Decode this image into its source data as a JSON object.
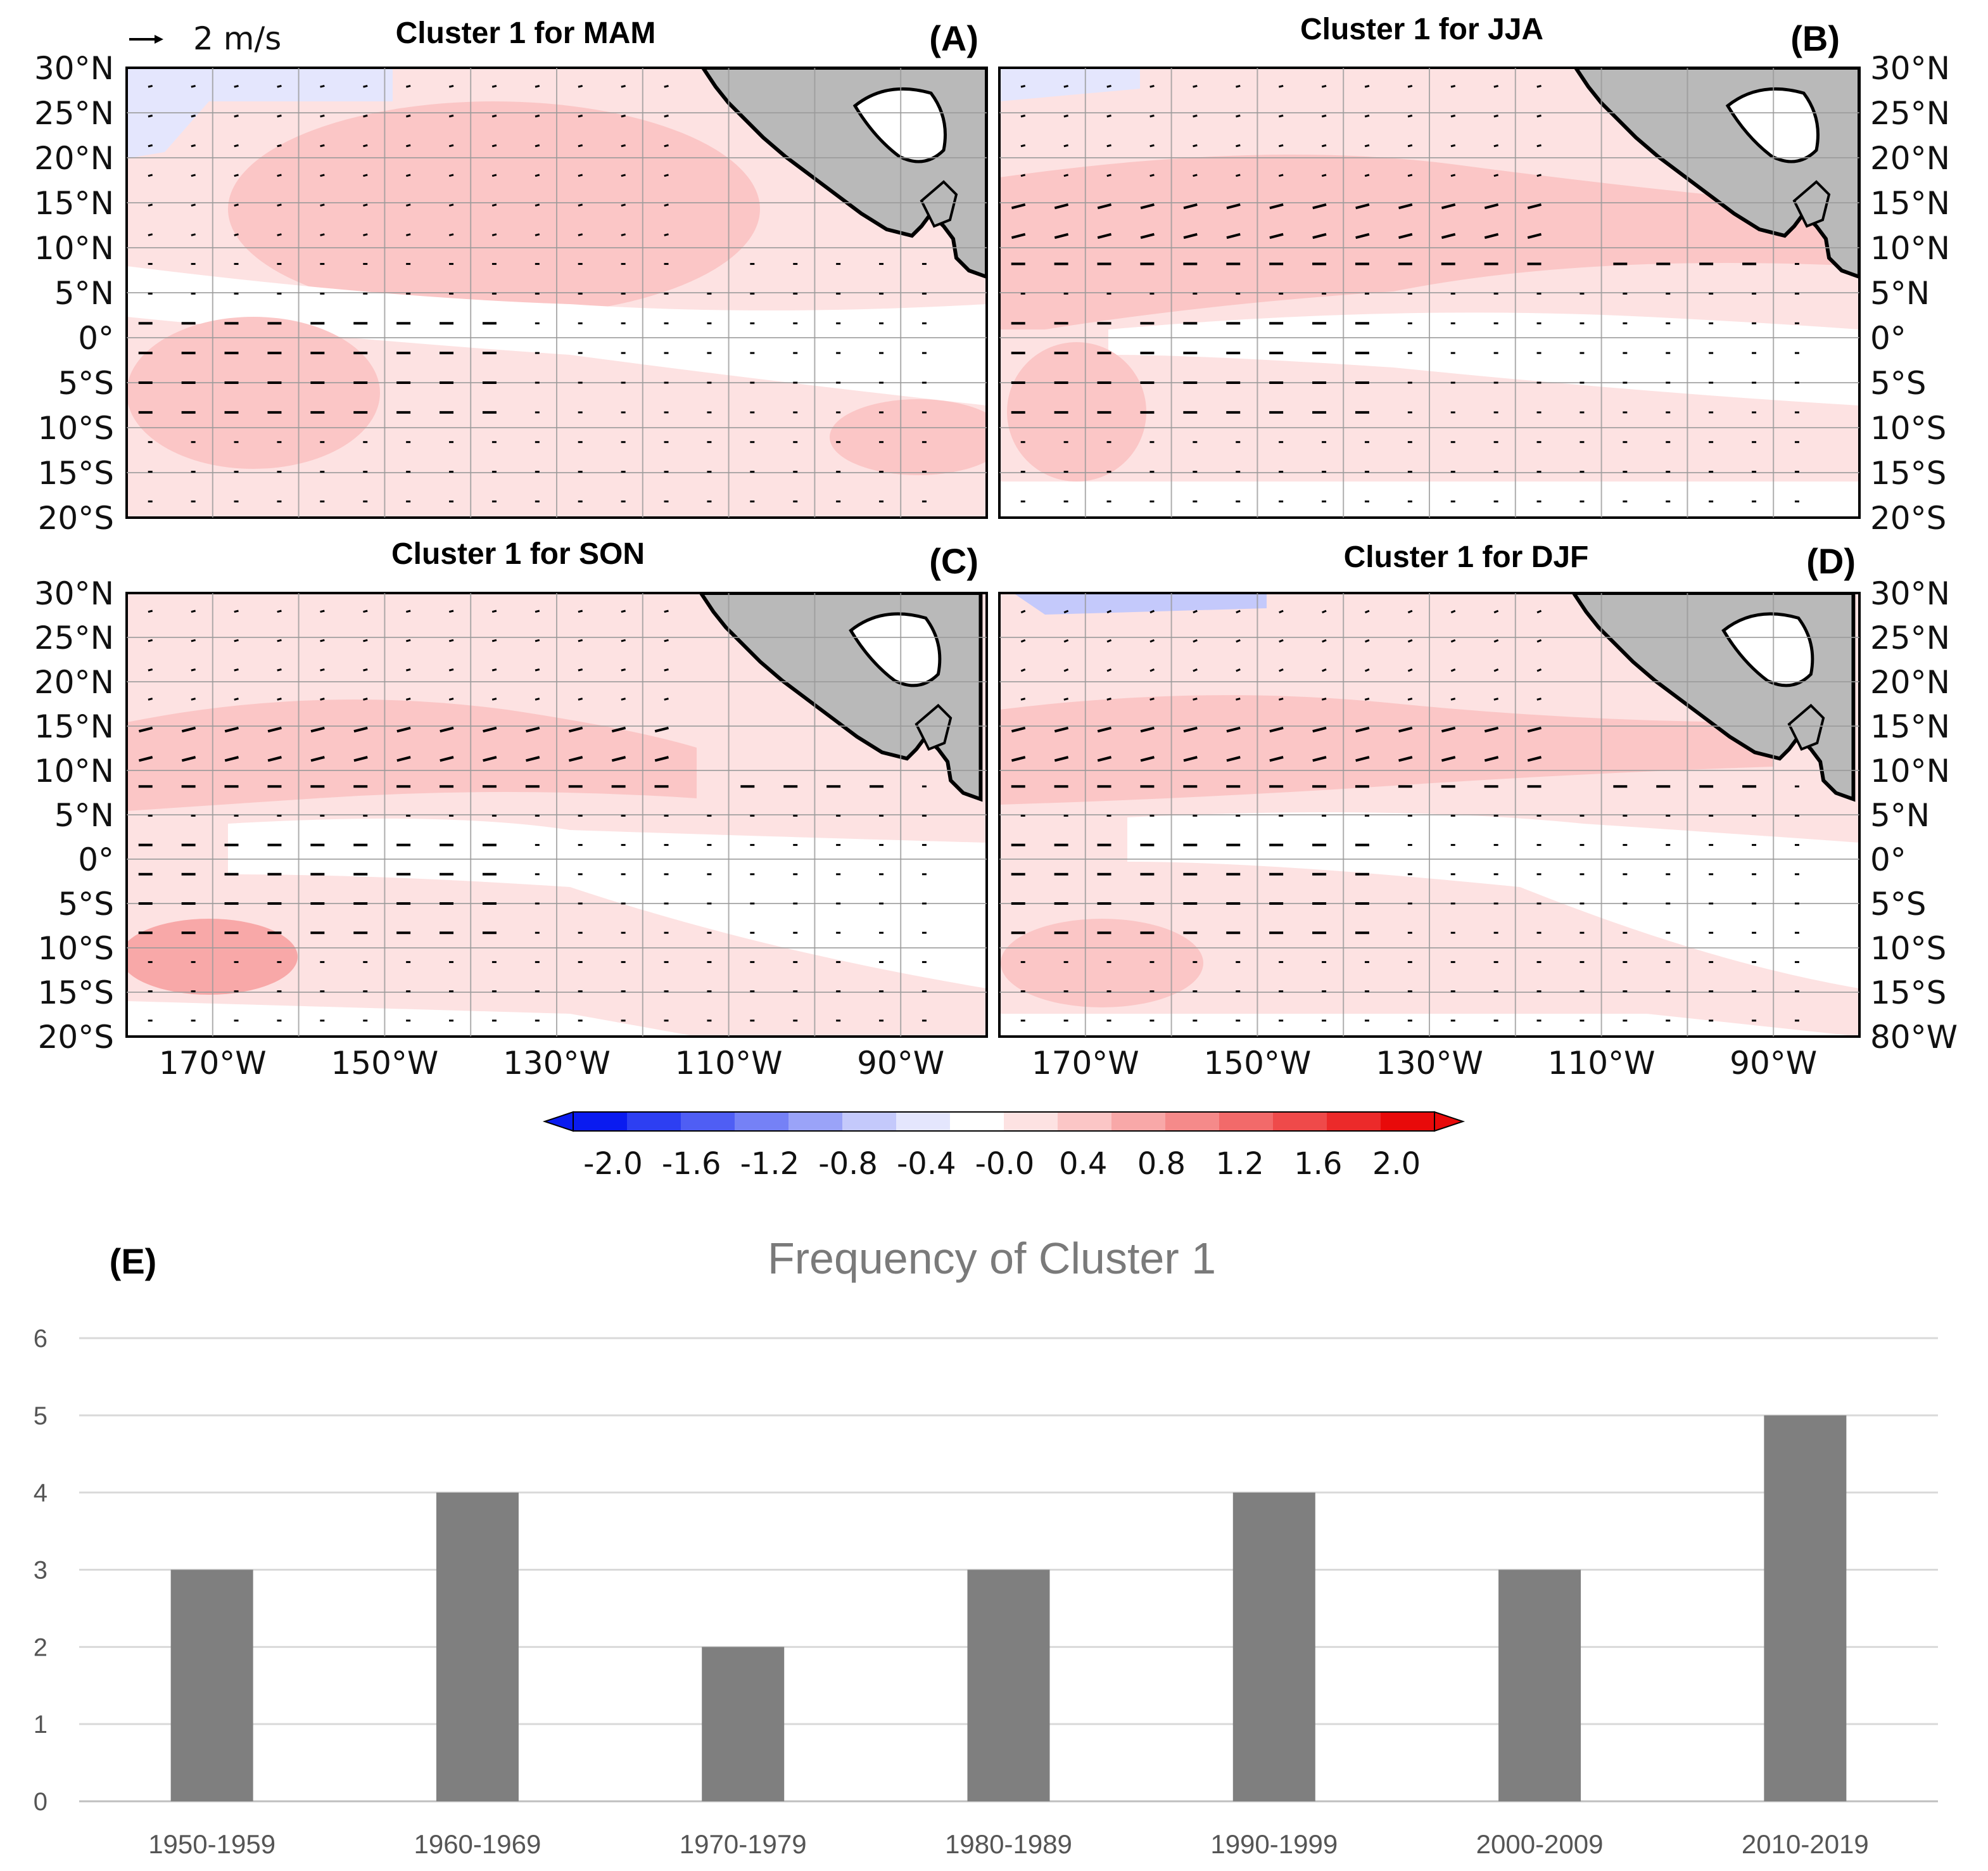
{
  "vector_key": {
    "label": "2 m/s"
  },
  "colorbar": {
    "ticks": [
      "-2.0",
      "-1.6",
      "-1.2",
      "-0.8",
      "-0.4",
      "-0.0",
      "0.4",
      "0.8",
      "1.2",
      "1.6",
      "2.0"
    ],
    "colors": [
      "#0a1bf0",
      "#2d3ff2",
      "#4f5ef4",
      "#7581f6",
      "#9aa3f8",
      "#c4c9fb",
      "#e4e6fd",
      "#ffffff",
      "#fde2e2",
      "#fbc6c6",
      "#f8a8a8",
      "#f58a8a",
      "#f26a6a",
      "#ef4a4a",
      "#ec2a2a",
      "#e80a0a"
    ]
  },
  "maps": [
    {
      "id": "A",
      "title": "Cluster 1 for MAM",
      "panel_label": "(A)"
    },
    {
      "id": "B",
      "title": "Cluster 1 for JJA",
      "panel_label": "(B)"
    },
    {
      "id": "C",
      "title": "Cluster 1 for SON",
      "panel_label": "(C)"
    },
    {
      "id": "D",
      "title": "Cluster 1 for DJF",
      "panel_label": "(D)"
    }
  ],
  "lat_labels": [
    "30°N",
    "25°N",
    "20°N",
    "15°N",
    "10°N",
    "5°N",
    "0°",
    "5°S",
    "10°S",
    "15°S",
    "20°S"
  ],
  "lat_labels_right_bottom": [
    "30°N",
    "25°N",
    "20°N",
    "15°N",
    "10°N",
    "5°N",
    "0°",
    "5°S",
    "10°S",
    "15°S",
    "80°W"
  ],
  "lon_labels": [
    "170°W",
    "150°W",
    "130°W",
    "110°W",
    "90°W"
  ],
  "chart_data": {
    "type": "bar",
    "panel_label": "(E)",
    "title": "Frequency of Cluster 1",
    "categories": [
      "1950-1959",
      "1960-1969",
      "1970-1979",
      "1980-1989",
      "1990-1999",
      "2000-2009",
      "2010-2019"
    ],
    "values": [
      3,
      4,
      2,
      3,
      4,
      3,
      5
    ],
    "ylim": [
      0,
      6
    ],
    "yticks": [
      "0",
      "1",
      "2",
      "3",
      "4",
      "5",
      "6"
    ],
    "bar_color": "#7f7f7f",
    "grid": true,
    "xlabel": "",
    "ylabel": ""
  }
}
